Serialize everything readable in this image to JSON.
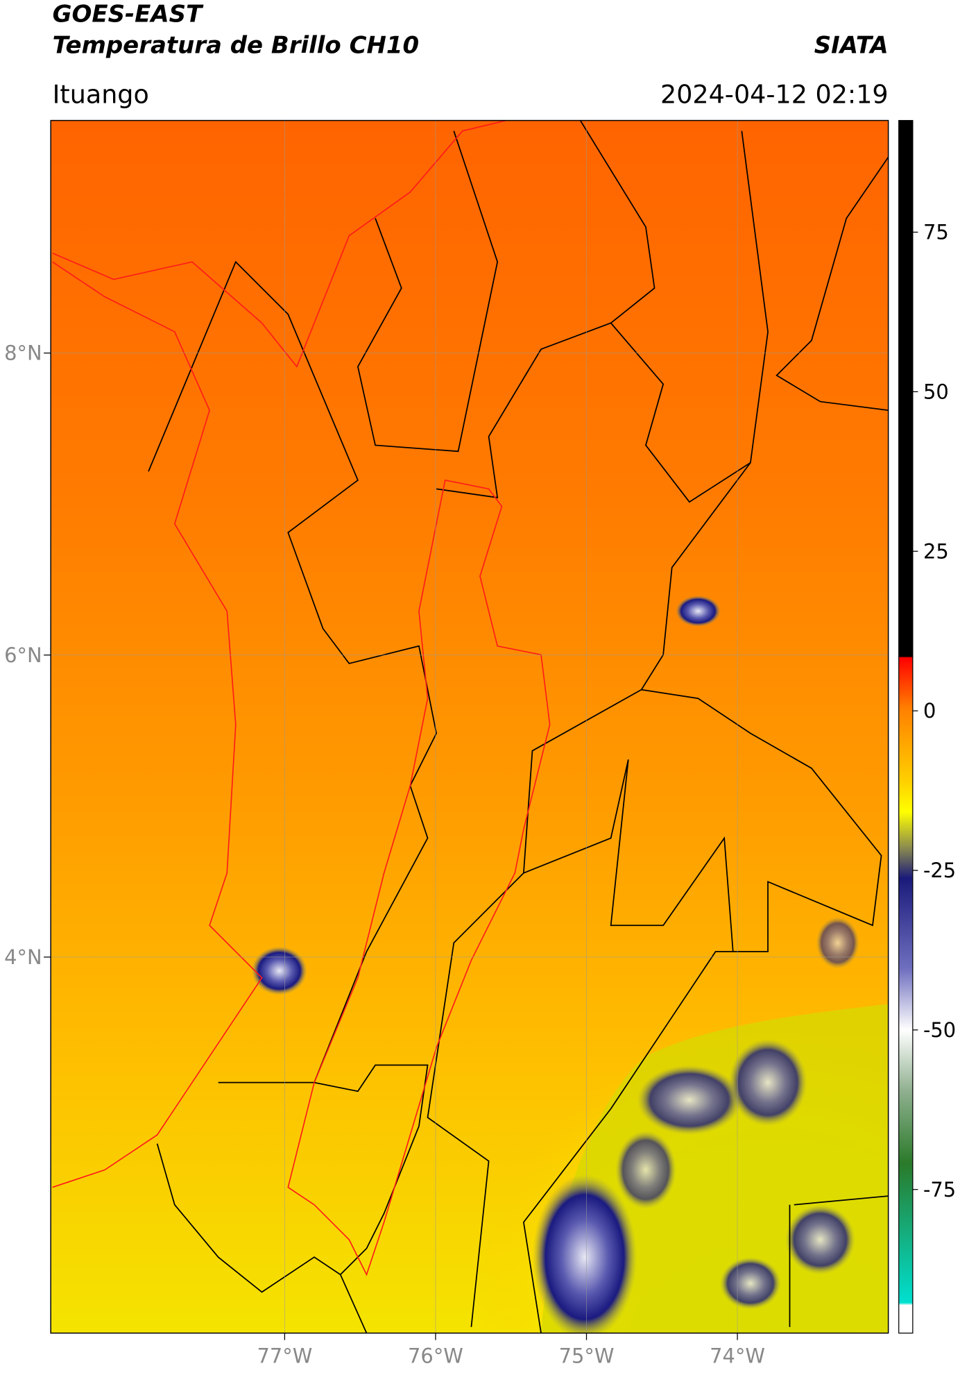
{
  "header": {
    "title": "GOES-EAST",
    "subtitle": "Temperatura de Brillo CH10",
    "source": "SIATA",
    "location": "Ituango",
    "datetime": "2024-04-12 02:19"
  },
  "map": {
    "xlim": [
      -78.55,
      -73.0
    ],
    "ylim": [
      1.51,
      9.54
    ],
    "xticks": [
      {
        "value": -77,
        "label": "77°W"
      },
      {
        "value": -76,
        "label": "76°W"
      },
      {
        "value": -75,
        "label": "75°W"
      },
      {
        "value": -74,
        "label": "74°W"
      }
    ],
    "yticks": [
      {
        "value": 8,
        "label": "8°N"
      },
      {
        "value": 6,
        "label": "6°N"
      },
      {
        "value": 4,
        "label": "4°N"
      }
    ]
  },
  "colorbar": {
    "lim": [
      -97.5,
      92.5
    ],
    "ticks": [
      75,
      50,
      25,
      0,
      -25,
      -50,
      -75
    ]
  }
}
